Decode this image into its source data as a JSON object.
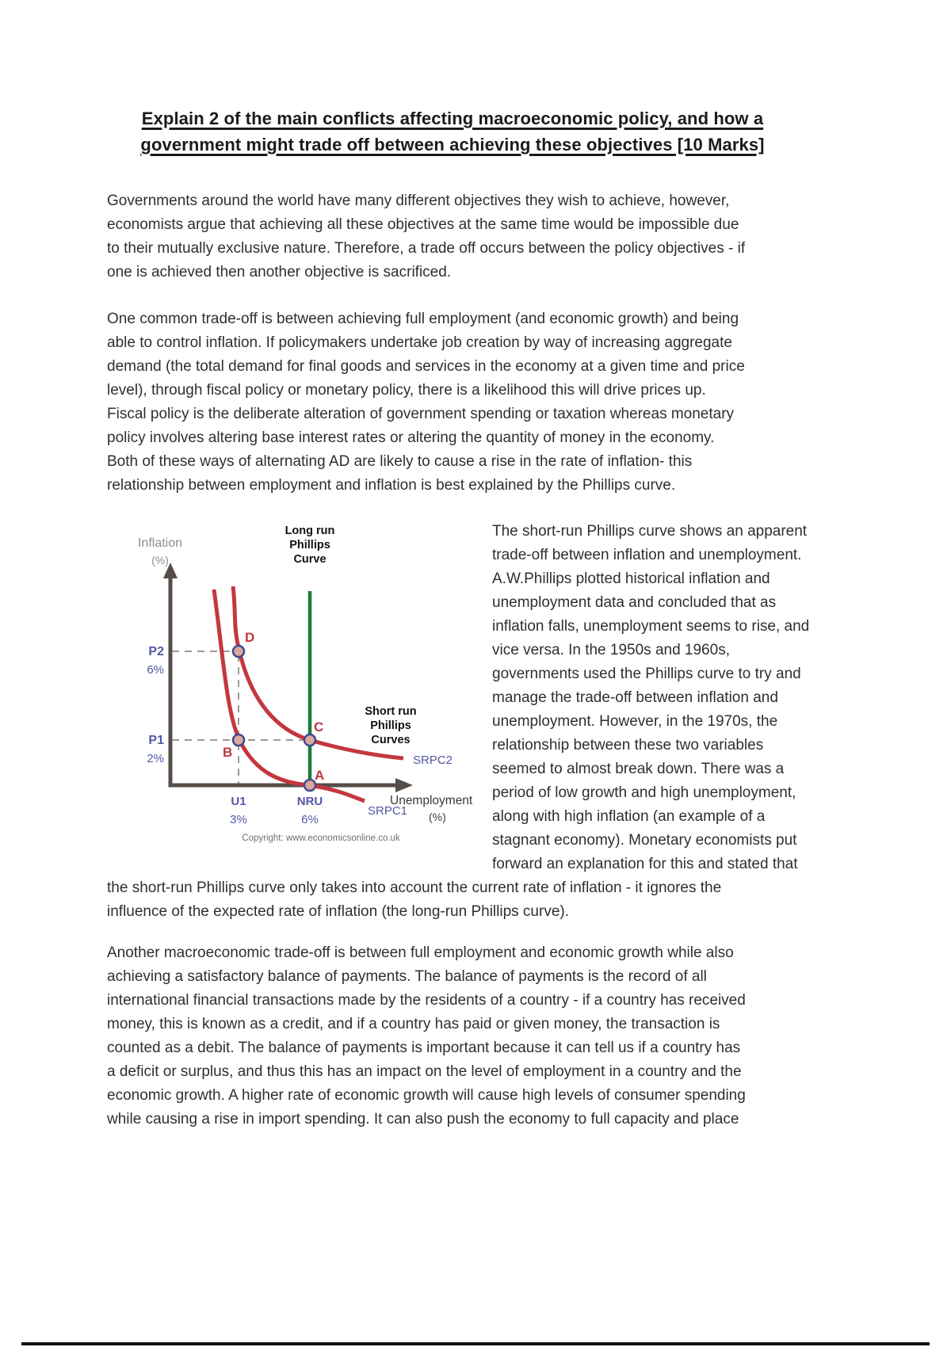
{
  "title": {
    "lines": [
      "Explain 2 of the main conflicts affecting macroeconomic policy, and how a",
      "government might trade off between achieving these objectives [10 Marks]"
    ]
  },
  "paragraphs": {
    "p1": {
      "lines": [
        "Governments around the world have many different objectives they wish to achieve, however,",
        "economists argue that achieving all these objectives at the same time would be impossible due",
        "to their mutually exclusive nature. Therefore, a trade off occurs between the policy objectives - if",
        "one is achieved then another objective is sacrificed."
      ]
    },
    "p2": {
      "lines": [
        "One common trade-off is between achieving full employment (and economic growth) and being",
        "able to control inflation. If policymakers undertake job creation by way of increasing aggregate",
        "demand (the total demand for final goods and services in the economy at a given time and price",
        "level), through fiscal policy or monetary policy, there is a likelihood this will drive prices up.",
        "Fiscal policy is the deliberate alteration of government spending or taxation whereas monetary",
        "policy involves altering base interest rates or altering the quantity of money in the economy.",
        "Both of these ways of alternating AD are likely to cause a rise in the rate of inflation- this",
        "relationship between employment and inflation is best explained by the Phillips curve."
      ]
    },
    "p3": {
      "lines_beside": [
        "The short-run Phillips curve shows an apparent",
        "trade-off between inflation and unemployment.",
        "A.W.Phillips plotted historical inflation and",
        "unemployment data and concluded that as",
        "inflation falls, unemployment seems to rise, and",
        "vice versa. In the 1950s and 1960s,",
        "governments used the Phillips curve to try and",
        "manage the trade-off between inflation and",
        "unemployment. However, in the 1970s, the",
        "relationship between these two variables",
        "seemed to almost break down. There was a",
        "period of low growth and high unemployment,",
        "along with high inflation (an example of a",
        "stagnant economy). Monetary economists put",
        "forward an explanation for this and stated that"
      ],
      "lines_below": [
        "the short-run Phillips curve only takes into account the current rate of inflation - it ignores the",
        "influence of the expected rate of inflation (the long-run Phillips curve)."
      ]
    },
    "p4": {
      "lines": [
        "Another macroeconomic trade-off is between full employment and economic growth while also",
        "achieving a satisfactory balance of payments. The balance of payments is the record of all",
        "international financial transactions made by the residents of a country - if a country has received",
        "money, this is known as a credit, and if a country has paid or given money, the transaction is",
        "counted as a debit. The balance of payments is important because it can tell us if a country has",
        "a deficit or surplus, and thus this has an impact on the level of employment in a country and the",
        "economic growth. A higher rate of economic growth will cause high levels of consumer spending",
        "while causing a rise in import spending. It can also push the economy to full capacity and place"
      ]
    }
  },
  "diagram": {
    "y_axis_label": [
      "Inflation",
      "(%)"
    ],
    "x_axis_label": [
      "Unemployment",
      "(%)"
    ],
    "lrpc_label": [
      "Long run",
      "Phillips",
      "Curve"
    ],
    "srpc_label": [
      "Short run",
      "Phillips",
      "Curves"
    ],
    "curve1_label": "SRPC1",
    "curve2_label": "SRPC2",
    "y_ticks": [
      {
        "name": "P2",
        "value": "6%"
      },
      {
        "name": "P1",
        "value": "2%"
      }
    ],
    "x_ticks": [
      {
        "name": "U1",
        "value": "3%"
      },
      {
        "name": "NRU",
        "value": "6%"
      }
    ],
    "points": {
      "a": "A",
      "b": "B",
      "c": "C",
      "d": "D"
    },
    "copyright": "Copyright: www.economicsonline.co.uk",
    "colors": {
      "curve_red": "#c4373e",
      "lrpc_green": "#1b7a3b",
      "axis_gray": "#564c48",
      "label_blue": "#5457a5",
      "label_red": "#c1373f",
      "marker_fill": "#dca89e",
      "marker_stroke": "#3f4a8c"
    }
  },
  "page": {
    "background": "#ffffff",
    "bottom_rule_color": "#121212"
  }
}
